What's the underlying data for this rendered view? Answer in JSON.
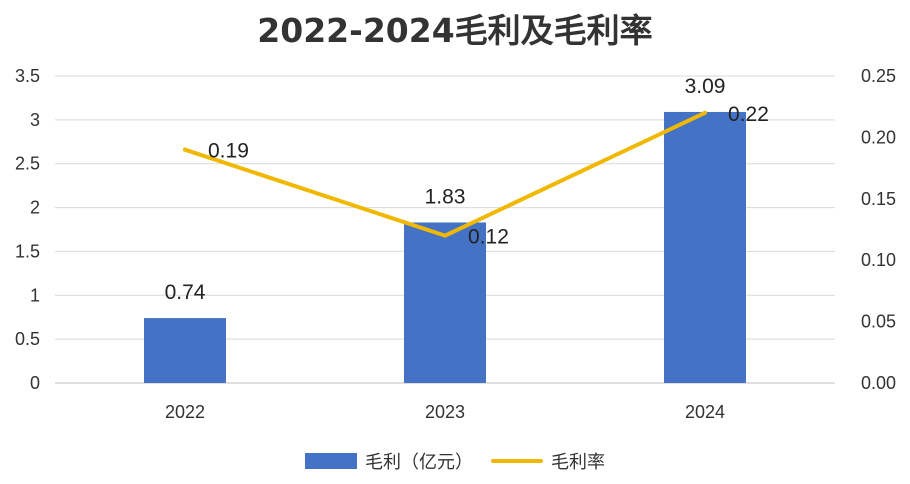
{
  "chart_data": {
    "type": "bar+line",
    "title": "2022-2024毛利及毛利率",
    "categories": [
      "2022",
      "2023",
      "2024"
    ],
    "series": [
      {
        "name": "毛利（亿元）",
        "type": "bar",
        "axis": "left",
        "values": [
          0.74,
          1.83,
          3.09
        ],
        "labels": [
          "0.74",
          "1.83",
          "3.09"
        ],
        "color": "#4472C4"
      },
      {
        "name": "毛利率",
        "type": "line",
        "axis": "right",
        "values": [
          0.19,
          0.12,
          0.22
        ],
        "labels": [
          "0.19",
          "0.12",
          "0.22"
        ],
        "color": "#F0B800"
      }
    ],
    "y_left": {
      "range": [
        0,
        3.5
      ],
      "ticks": [
        0,
        0.5,
        1,
        1.5,
        2,
        2.5,
        3,
        3.5
      ],
      "tick_labels": [
        "0",
        "0.5",
        "1",
        "1.5",
        "2",
        "2.5",
        "3",
        "3.5"
      ]
    },
    "y_right": {
      "range": [
        0,
        0.25
      ],
      "ticks": [
        0,
        0.05,
        0.1,
        0.15,
        0.2,
        0.25
      ],
      "tick_labels": [
        "0.00",
        "0.05",
        "0.10",
        "0.15",
        "0.20",
        "0.25"
      ]
    },
    "grid": true,
    "legend_position": "bottom"
  }
}
